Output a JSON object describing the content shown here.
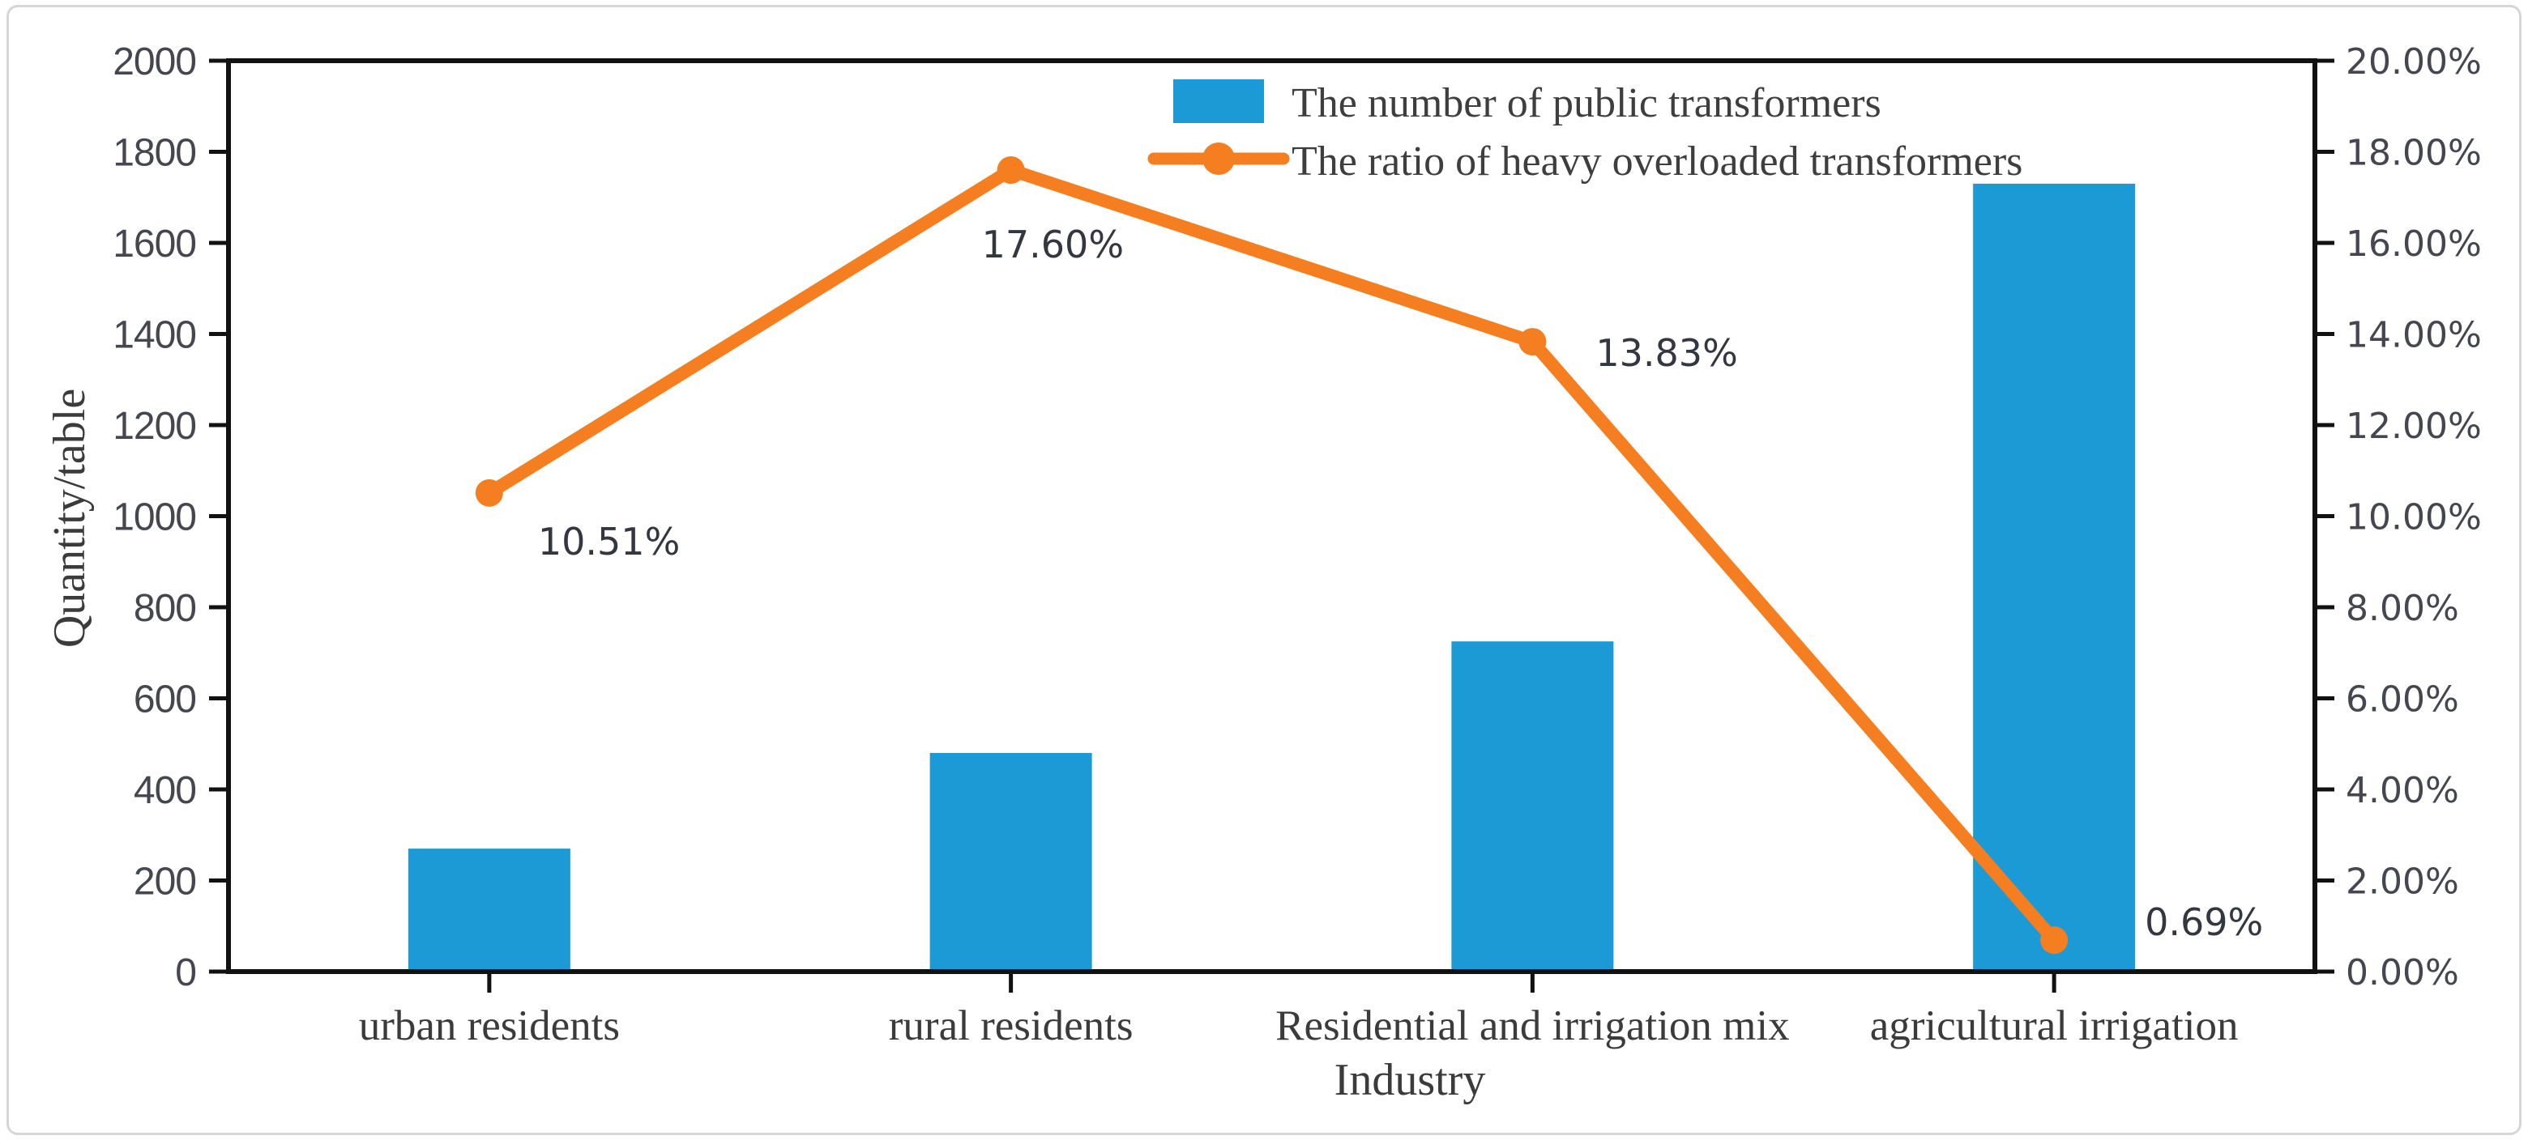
{
  "chart_data": {
    "type": "bar-line-combo",
    "title": "",
    "categories": [
      "urban residents",
      "rural residents",
      "Residential and irrigation mix",
      "agricultural irrigation"
    ],
    "xlabel": "Industry",
    "series": [
      {
        "name": "The number of public transformers",
        "type": "bar",
        "axis": "left",
        "color": "#1b9ad6",
        "values": [
          270,
          480,
          725,
          1730
        ]
      },
      {
        "name": "The ratio of heavy overloaded transformers",
        "type": "line",
        "axis": "right",
        "color": "#f57e20",
        "values": [
          10.51,
          17.6,
          13.83,
          0.69
        ],
        "point_labels": [
          "10.51%",
          "17.60%",
          "13.83%",
          "0.69%"
        ]
      }
    ],
    "left_axis": {
      "title": "Quantity/table",
      "min": 0,
      "max": 2000,
      "step": 200,
      "tick_labels": [
        "0",
        "200",
        "400",
        "600",
        "800",
        "1000",
        "1200",
        "1400",
        "1600",
        "1800",
        "2000"
      ]
    },
    "right_axis": {
      "title": "",
      "min": 0,
      "max": 20,
      "step": 2,
      "tick_labels": [
        "0.00%",
        "2.00%",
        "4.00%",
        "6.00%",
        "8.00%",
        "10.00%",
        "12.00%",
        "14.00%",
        "16.00%",
        "18.00%",
        "20.00%"
      ]
    },
    "legend": {
      "position": "top-center-right-inside",
      "items": [
        "The number of public transformers",
        "The ratio of heavy overloaded transformers"
      ]
    },
    "grid": false
  },
  "colors": {
    "bar": "#1b9ad6",
    "line": "#f57e20",
    "spine": "#111111",
    "tick_text": "#44474f",
    "serif_text": "#3b3b3b",
    "data_label_text": "#333740",
    "card_border": "#d6d6d6"
  }
}
